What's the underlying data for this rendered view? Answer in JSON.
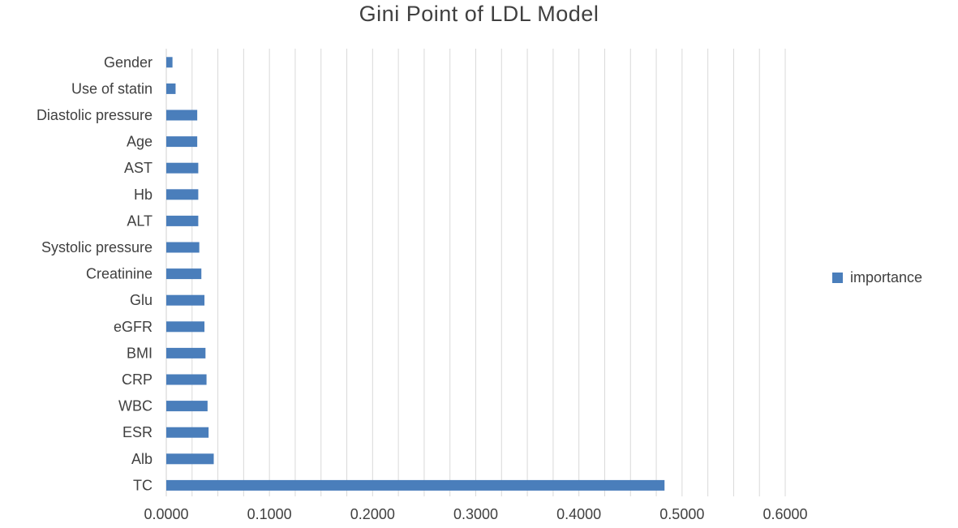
{
  "chart_data": {
    "type": "bar",
    "orientation": "horizontal",
    "title": "Gini Point of LDL Model",
    "xlabel": "",
    "ylabel": "",
    "xlim": [
      0,
      0.6
    ],
    "x_ticks": [
      "0.0000",
      "0.1000",
      "0.2000",
      "0.3000",
      "0.4000",
      "0.5000",
      "0.6000"
    ],
    "grid": "vertical",
    "legend_position": "right",
    "categories": [
      "Gender",
      "Use of statin",
      "Diastolic pressure",
      "Age",
      "AST",
      "Hb",
      "ALT",
      "Systolic pressure",
      "Creatinine",
      "Glu",
      "eGFR",
      "BMI",
      "CRP",
      "WBC",
      "ESR",
      "Alb",
      "TC"
    ],
    "series": [
      {
        "name": "importance",
        "color": "#4a7ebb",
        "values": [
          0.006,
          0.009,
          0.03,
          0.03,
          0.031,
          0.031,
          0.031,
          0.032,
          0.034,
          0.037,
          0.037,
          0.038,
          0.039,
          0.04,
          0.041,
          0.046,
          0.483
        ]
      }
    ]
  }
}
